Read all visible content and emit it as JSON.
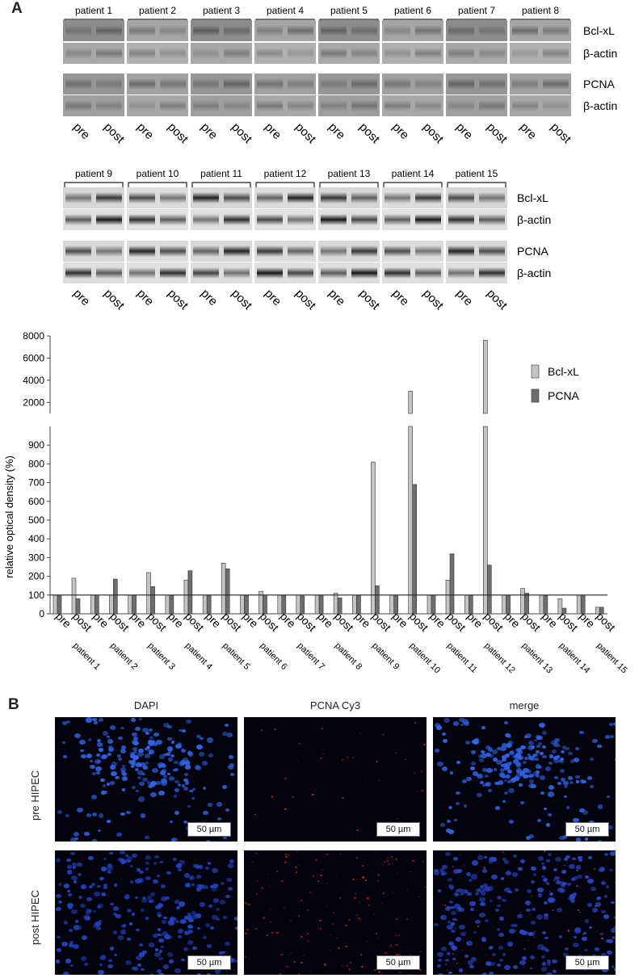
{
  "panel_a": {
    "letter": "A",
    "blots": [
      {
        "patients": [
          "patient 1",
          "patient 2",
          "patient 3",
          "patient 4",
          "patient 5",
          "patient 6",
          "patient 7",
          "patient 8"
        ],
        "proteins": [
          "Bcl-xL",
          "β-actin",
          "PCNA",
          "β-actin"
        ],
        "lane_labels": [
          "pre",
          "post"
        ]
      },
      {
        "patients": [
          "patient 9",
          "patient 10",
          "patient 11",
          "patient 12",
          "patient 13",
          "patient 14",
          "patient 15"
        ],
        "proteins": [
          "Bcl-xL",
          "β-actin",
          "PCNA",
          "β-actin"
        ],
        "lane_labels": [
          "pre",
          "post"
        ]
      }
    ]
  },
  "chart_data": {
    "type": "bar",
    "ylabel": "relative optical density (%)",
    "broken_axis": true,
    "lower_ylim": [
      0,
      1000
    ],
    "lower_yticks": [
      0,
      100,
      200,
      300,
      400,
      500,
      600,
      700,
      800,
      900
    ],
    "upper_ylim": [
      1000,
      8000
    ],
    "upper_yticks": [
      2000,
      4000,
      6000,
      8000
    ],
    "reference_line": 100,
    "categories": [
      "patient 1",
      "patient 2",
      "patient 3",
      "patient 4",
      "patient 5",
      "patient 6",
      "patient 7",
      "patient 8",
      "patient 9",
      "patient 10",
      "patient 11",
      "patient 12",
      "patient 13",
      "patient 14",
      "patient 15"
    ],
    "lane_labels": [
      "pre",
      "post"
    ],
    "legend_position": "top-right",
    "series": [
      {
        "name": "Bcl-xL",
        "color": "#c4c4c4",
        "pre": [
          100,
          100,
          100,
          100,
          100,
          100,
          100,
          100,
          100,
          100,
          100,
          100,
          100,
          100,
          100
        ],
        "post": [
          190,
          100,
          220,
          180,
          270,
          120,
          100,
          110,
          810,
          3000,
          180,
          7600,
          135,
          80,
          35
        ]
      },
      {
        "name": "PCNA",
        "color": "#6e6e6e",
        "pre": [
          100,
          100,
          100,
          100,
          100,
          100,
          100,
          100,
          100,
          100,
          100,
          100,
          100,
          100,
          100
        ],
        "post": [
          80,
          185,
          145,
          230,
          240,
          100,
          95,
          85,
          150,
          690,
          320,
          260,
          110,
          30,
          35
        ]
      }
    ]
  },
  "panel_b": {
    "letter": "B",
    "columns": [
      "DAPI",
      "PCNA Cy3",
      "merge"
    ],
    "rows": [
      "pre HIPEC",
      "post HIPEC"
    ],
    "scale_label": "50 µm"
  }
}
